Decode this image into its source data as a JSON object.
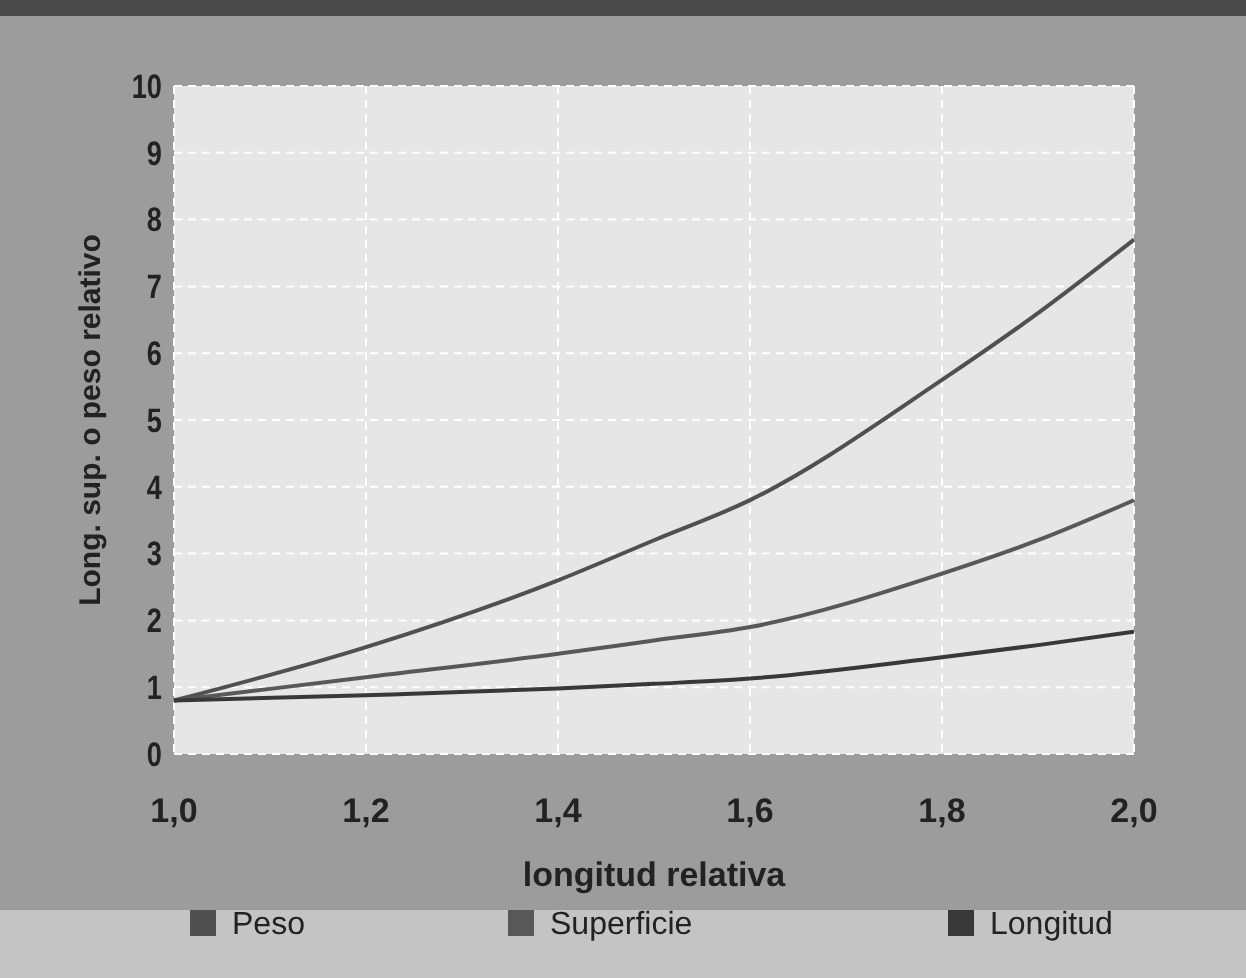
{
  "chart_data": {
    "type": "line",
    "xlabel": "longitud relativa",
    "ylabel": "Long. sup. o peso relativo",
    "x": [
      1.0,
      1.2,
      1.4,
      1.5,
      1.6,
      1.8,
      1.9,
      2.0
    ],
    "series": [
      {
        "name": "Peso",
        "color": "#505050",
        "values": [
          0.8,
          1.6,
          2.6,
          3.2,
          3.8,
          5.6,
          6.6,
          7.7
        ]
      },
      {
        "name": "Superficie",
        "color": "#585858",
        "values": [
          0.8,
          1.15,
          1.5,
          1.7,
          1.9,
          2.7,
          3.2,
          3.8
        ]
      },
      {
        "name": "Longitud",
        "color": "#383838",
        "values": [
          0.8,
          0.88,
          0.98,
          1.05,
          1.13,
          1.45,
          1.63,
          1.83
        ]
      }
    ],
    "xlim": [
      1.0,
      2.0
    ],
    "xticks": [
      {
        "value": 1.0,
        "label": "1,0"
      },
      {
        "value": 1.2,
        "label": "1,2"
      },
      {
        "value": 1.4,
        "label": "1,4"
      },
      {
        "value": 1.6,
        "label": "1,6"
      },
      {
        "value": 1.8,
        "label": "1,8"
      },
      {
        "value": 2.0,
        "label": "2,0"
      }
    ],
    "ylim": [
      0,
      10
    ],
    "yticks": [
      0,
      1,
      2,
      3,
      4,
      5,
      6,
      7,
      8,
      9,
      10
    ],
    "grid": true,
    "legend": "bottom",
    "marker": "none",
    "line_style": "solid"
  }
}
